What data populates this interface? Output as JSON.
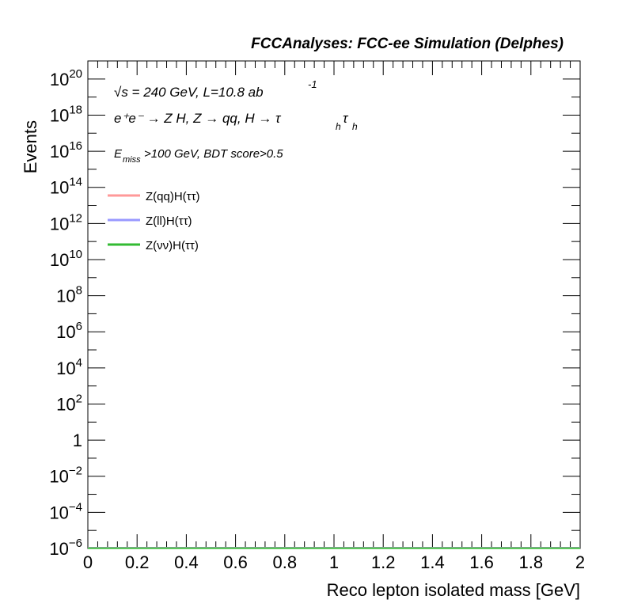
{
  "chart_data": {
    "type": "line",
    "title": "FCCAnalyses: FCC-ee Simulation (Delphes)",
    "xlabel": "Reco lepton isolated mass [GeV]",
    "ylabel": "Events",
    "xlim": [
      0,
      2
    ],
    "ylim_log10": [
      -6,
      21
    ],
    "y_scale": "log",
    "x_ticks": [
      "0",
      "0.2",
      "0.4",
      "0.6",
      "0.8",
      "1",
      "1.2",
      "1.4",
      "1.6",
      "1.8",
      "2"
    ],
    "y_ticks": [
      {
        "exp": 20,
        "label": "10",
        "sup": "20"
      },
      {
        "exp": 18,
        "label": "10",
        "sup": "18"
      },
      {
        "exp": 16,
        "label": "10",
        "sup": "16"
      },
      {
        "exp": 14,
        "label": "10",
        "sup": "14"
      },
      {
        "exp": 12,
        "label": "10",
        "sup": "12"
      },
      {
        "exp": 10,
        "label": "10",
        "sup": "10"
      },
      {
        "exp": 8,
        "label": "10",
        "sup": "8"
      },
      {
        "exp": 6,
        "label": "10",
        "sup": "6"
      },
      {
        "exp": 4,
        "label": "10",
        "sup": "4"
      },
      {
        "exp": 2,
        "label": "10",
        "sup": "2"
      },
      {
        "exp": 0,
        "label": "1",
        "sup": ""
      },
      {
        "exp": -2,
        "label": "10",
        "sup": "−2"
      },
      {
        "exp": -4,
        "label": "10",
        "sup": "−4"
      },
      {
        "exp": -6,
        "label": "10",
        "sup": "−6"
      }
    ],
    "annotations": {
      "energy": "√s = 240 GeV, L=10.8 ab",
      "energy_sup": "-1",
      "process": "e⁺e⁻ → Z H, Z → qq, H → τ",
      "process_sub1": "h",
      "process_tau2": "τ",
      "process_sub2": "h",
      "cut_e": "E",
      "cut_sub": "miss",
      "cut_rest": ">100 GeV, BDT score>0.5"
    },
    "legend_position": "top-left",
    "series": [
      {
        "name": "Z(qq)H(ττ)",
        "color": "#ff9999",
        "x": [
          0,
          2
        ],
        "y": [
          0,
          0
        ]
      },
      {
        "name": "Z(ll)H(ττ)",
        "color": "#9999ff",
        "x": [
          0,
          2
        ],
        "y": [
          0,
          0
        ]
      },
      {
        "name": "Z(νν)H(ττ)",
        "color": "#33bb33",
        "x": [
          0,
          2
        ],
        "y": [
          0,
          0
        ]
      }
    ]
  }
}
